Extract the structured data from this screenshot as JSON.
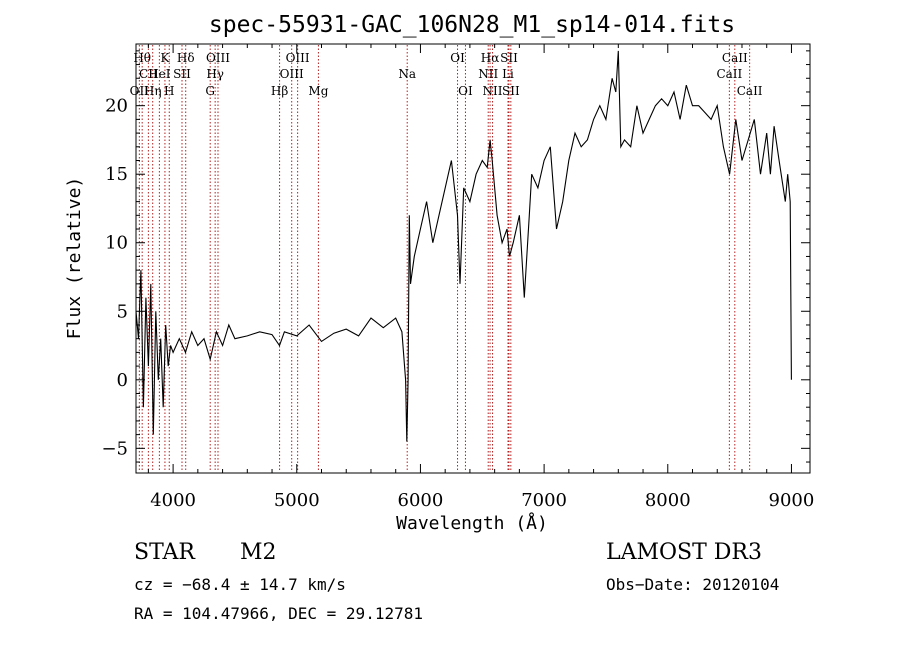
{
  "chart_data": {
    "type": "line",
    "title": "spec-55931-GAC_106N28_M1_sp14-014.fits",
    "xlabel": "Wavelength (Å)",
    "ylabel": "Flux (relative)",
    "xlim": [
      3700,
      9150
    ],
    "ylim": [
      -6.8,
      24.5
    ],
    "x_ticks": [
      4000,
      5000,
      6000,
      7000,
      8000,
      9000
    ],
    "y_ticks": [
      -5,
      0,
      5,
      10,
      15,
      20
    ],
    "x_tick_labels": [
      "4000",
      "5000",
      "6000",
      "7000",
      "8000",
      "9000"
    ],
    "y_tick_labels": [
      "−5",
      "0",
      "5",
      "10",
      "15",
      "20"
    ],
    "line_color": "#000000",
    "marker_color": "#b22222",
    "series": [
      {
        "name": "flux",
        "x": [
          3700,
          3720,
          3740,
          3760,
          3780,
          3800,
          3820,
          3840,
          3860,
          3880,
          3900,
          3920,
          3940,
          3960,
          3980,
          4000,
          4050,
          4100,
          4150,
          4200,
          4250,
          4300,
          4350,
          4400,
          4450,
          4500,
          4600,
          4700,
          4800,
          4860,
          4900,
          5000,
          5100,
          5200,
          5300,
          5400,
          5500,
          5600,
          5700,
          5800,
          5850,
          5880,
          5890,
          5900,
          5910,
          5920,
          5950,
          6000,
          6050,
          6100,
          6150,
          6200,
          6250,
          6300,
          6320,
          6350,
          6400,
          6450,
          6500,
          6540,
          6563,
          6580,
          6620,
          6660,
          6700,
          6720,
          6750,
          6800,
          6840,
          6880,
          6900,
          6950,
          7000,
          7050,
          7100,
          7150,
          7200,
          7250,
          7300,
          7350,
          7400,
          7450,
          7500,
          7550,
          7580,
          7600,
          7620,
          7650,
          7700,
          7750,
          7800,
          7850,
          7900,
          7950,
          8000,
          8050,
          8100,
          8150,
          8200,
          8250,
          8300,
          8350,
          8400,
          8450,
          8500,
          8550,
          8600,
          8650,
          8700,
          8750,
          8800,
          8830,
          8860,
          8900,
          8950,
          8970,
          8990,
          9000
        ],
        "y": [
          5,
          3,
          8,
          -2,
          6,
          1,
          7,
          -4,
          5,
          0,
          3,
          -2,
          4,
          1,
          2.5,
          2,
          3,
          2,
          3.5,
          2.5,
          3,
          1.5,
          3.5,
          2.5,
          4,
          3,
          3.2,
          3.5,
          3.3,
          2.5,
          3.5,
          3.2,
          4,
          2.8,
          3.4,
          3.7,
          3.2,
          4.5,
          3.8,
          4.5,
          3.5,
          0,
          -4.5,
          0,
          12,
          7,
          9,
          11,
          13,
          10,
          12,
          14,
          16,
          12,
          7,
          14,
          13,
          15,
          16,
          15.5,
          17.5,
          16,
          12,
          10,
          11,
          9,
          10,
          12,
          6,
          12,
          15,
          14,
          16,
          17,
          11,
          13,
          16,
          18,
          17,
          17.5,
          19,
          20,
          19,
          22,
          21,
          24,
          17,
          17.5,
          17,
          20,
          18,
          19,
          20,
          20.5,
          20,
          21,
          19,
          21.5,
          20,
          20,
          19.5,
          19,
          20,
          17,
          15,
          19,
          16,
          17.5,
          19,
          15,
          18,
          15,
          18.5,
          16,
          13,
          15,
          13,
          0
        ]
      }
    ],
    "line_markers": [
      {
        "wavelength": 3750,
        "labels": [
          "Hθ"
        ],
        "rows": [
          0
        ]
      },
      {
        "wavelength": 3727,
        "labels": [
          "OII"
        ],
        "rows": [
          2
        ]
      },
      {
        "wavelength": 3800,
        "labels": [
          "CII"
        ],
        "rows": [
          1
        ]
      },
      {
        "wavelength": 3835,
        "labels": [
          "Hη"
        ],
        "rows": [
          2
        ]
      },
      {
        "wavelength": 3889,
        "labels": [
          "HeI"
        ],
        "rows": [
          1
        ]
      },
      {
        "wavelength": 3934,
        "labels": [
          "K"
        ],
        "rows": [
          0
        ]
      },
      {
        "wavelength": 3969,
        "labels": [
          "H"
        ],
        "rows": [
          2
        ]
      },
      {
        "wavelength": 4072,
        "labels": [
          "SII"
        ],
        "rows": [
          1
        ]
      },
      {
        "wavelength": 4102,
        "labels": [
          "Hδ"
        ],
        "rows": [
          0
        ]
      },
      {
        "wavelength": 4300,
        "labels": [
          "G"
        ],
        "rows": [
          2
        ]
      },
      {
        "wavelength": 4340,
        "labels": [
          "Hγ"
        ],
        "rows": [
          1
        ]
      },
      {
        "wavelength": 4363,
        "labels": [
          "OIII"
        ],
        "rows": [
          0
        ]
      },
      {
        "wavelength": 4861,
        "labels": [
          "Hβ"
        ],
        "rows": [
          2
        ]
      },
      {
        "wavelength": 4959,
        "labels": [
          "OIII"
        ],
        "rows": [
          1
        ]
      },
      {
        "wavelength": 5007,
        "labels": [
          "OIII"
        ],
        "rows": [
          0
        ]
      },
      {
        "wavelength": 5175,
        "labels": [
          "Mg"
        ],
        "rows": [
          2
        ]
      },
      {
        "wavelength": 5893,
        "labels": [
          "Na"
        ],
        "rows": [
          1
        ]
      },
      {
        "wavelength": 6300,
        "labels": [
          "OI"
        ],
        "rows": [
          0
        ]
      },
      {
        "wavelength": 6364,
        "labels": [
          "OI"
        ],
        "rows": [
          2
        ]
      },
      {
        "wavelength": 6548,
        "labels": [
          "NII"
        ],
        "rows": [
          1
        ]
      },
      {
        "wavelength": 6563,
        "labels": [
          "Hα"
        ],
        "rows": [
          0
        ]
      },
      {
        "wavelength": 6583,
        "labels": [
          "NII"
        ],
        "rows": [
          2
        ]
      },
      {
        "wavelength": 6708,
        "labels": [
          "Li"
        ],
        "rows": [
          1
        ]
      },
      {
        "wavelength": 6716,
        "labels": [
          "SII"
        ],
        "rows": [
          0
        ]
      },
      {
        "wavelength": 6731,
        "labels": [
          "SII"
        ],
        "rows": [
          2
        ]
      },
      {
        "wavelength": 8498,
        "labels": [
          "CaII"
        ],
        "rows": [
          1
        ]
      },
      {
        "wavelength": 8542,
        "labels": [
          "CaII"
        ],
        "rows": [
          0
        ]
      },
      {
        "wavelength": 8662,
        "labels": [
          "CaII"
        ],
        "rows": [
          2
        ]
      }
    ]
  },
  "info": {
    "class": "STAR",
    "subclass": "M2",
    "survey": "LAMOST DR3",
    "cz": "cz = −68.4 ± 14.7 km/s",
    "obs_date": "Obs−Date: 20120104",
    "coords": "RA = 104.47966, DEC =  29.12781"
  }
}
